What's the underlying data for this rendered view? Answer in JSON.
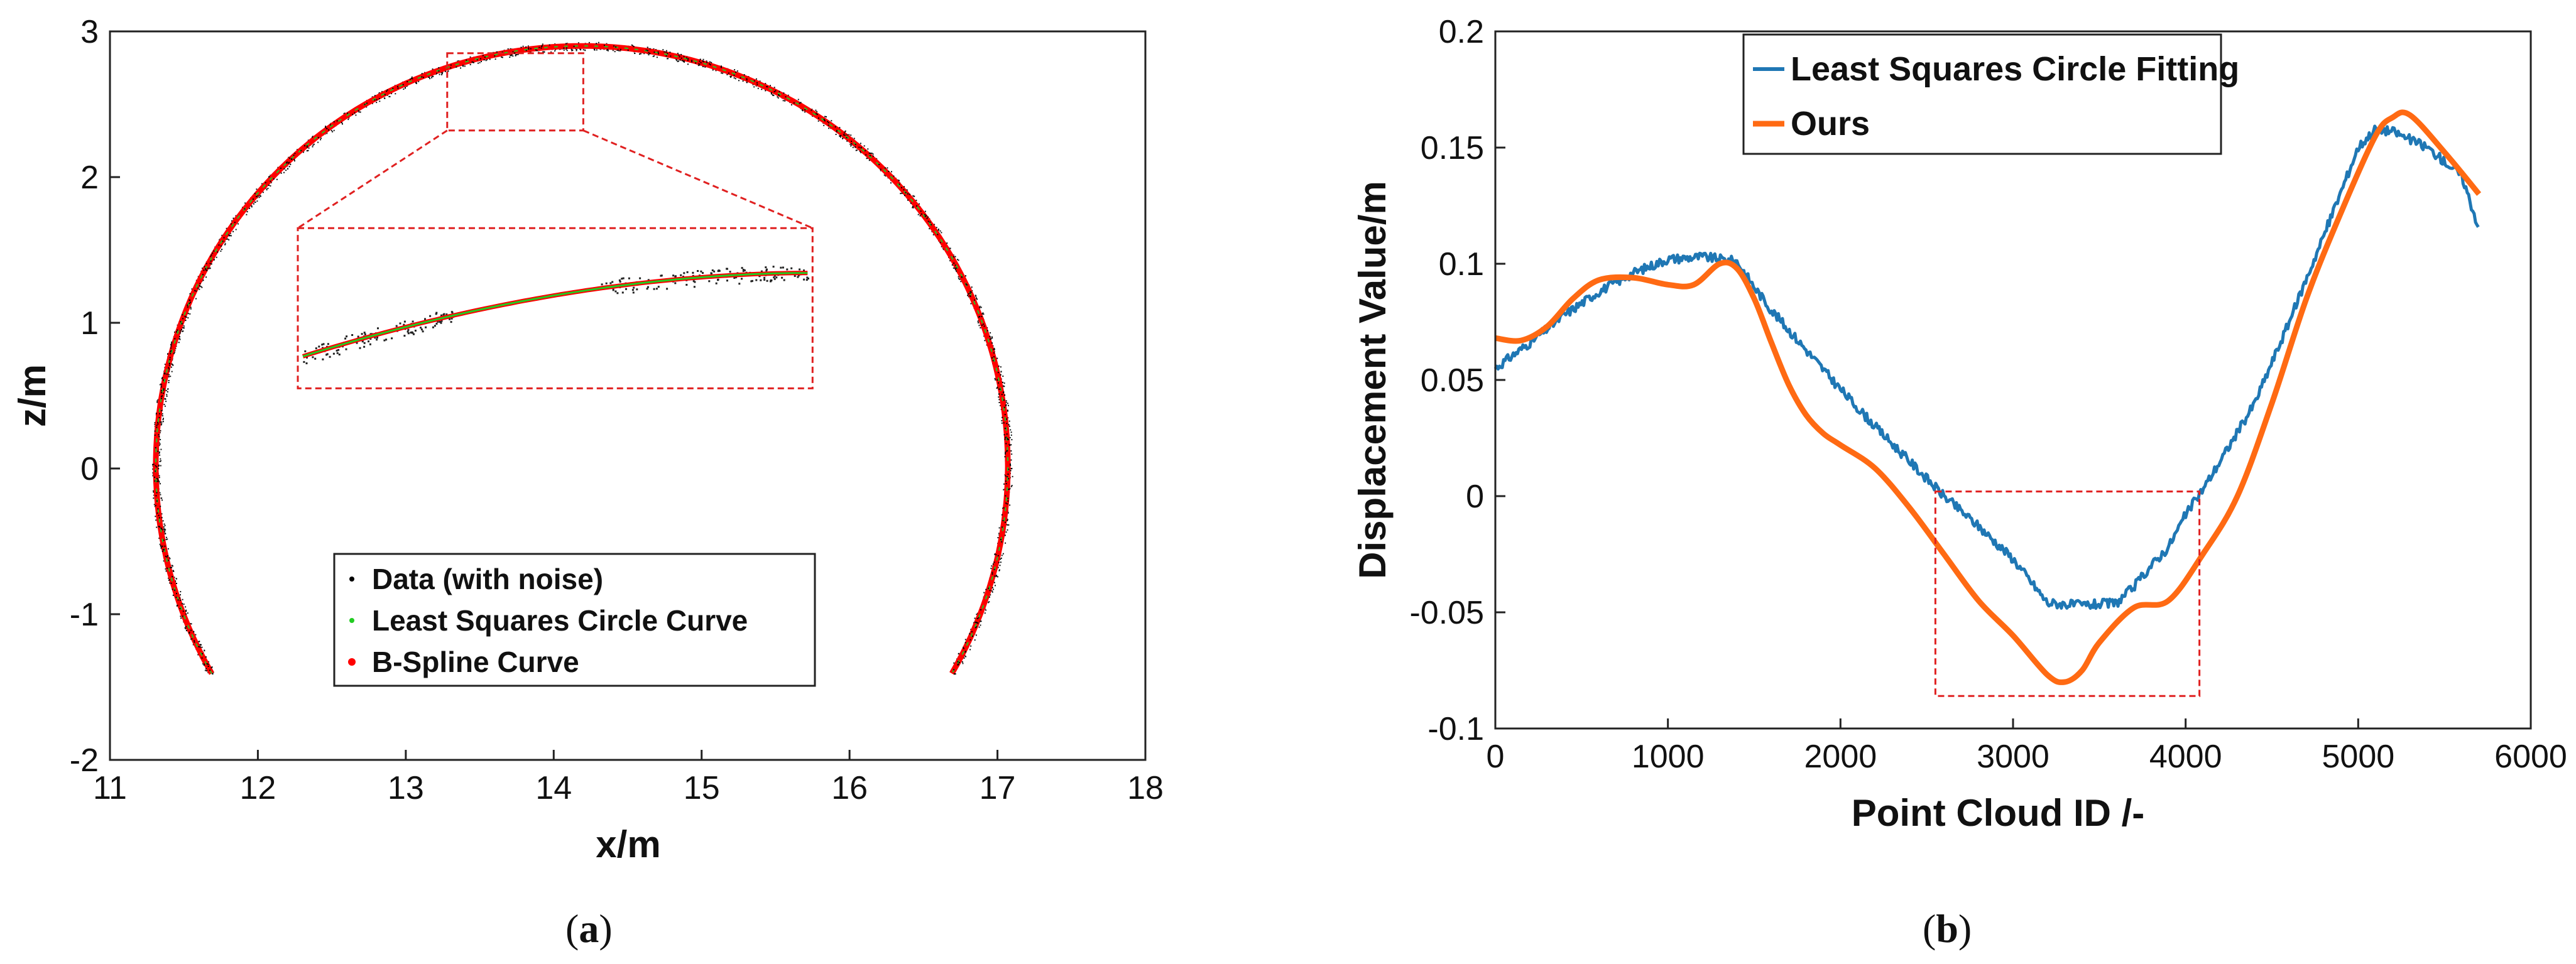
{
  "chart_data": [
    {
      "panel": "a",
      "type": "line",
      "xlabel": "x/m",
      "ylabel": "z/m",
      "xlim": [
        11,
        18
      ],
      "ylim": [
        -2,
        3
      ],
      "xticks": [
        "11",
        "12",
        "13",
        "14",
        "15",
        "16",
        "17",
        "18"
      ],
      "yticks": [
        "-2",
        "-1",
        "0",
        "1",
        "2",
        "3"
      ],
      "grid": false,
      "legend_position": "bottom-center",
      "fit_center": [
        14.19,
        0.02
      ],
      "fit_radius": 2.88,
      "arc_start": [
        11.7,
        -1.4
      ],
      "arc_end": [
        16.68,
        -1.4
      ],
      "series": [
        {
          "name": "Data (with noise)",
          "color": "#000000",
          "style": "scatter"
        },
        {
          "name": "Least Squares Circle Curve",
          "color": "#22cc22",
          "style": "line"
        },
        {
          "name": "B-Spline Curve",
          "color": "#ff0000",
          "style": "line"
        }
      ],
      "inset": {
        "zoom_x": [
          13.28,
          14.2
        ],
        "zoom_y": [
          2.32,
          2.85
        ],
        "source_region": "top of arch"
      }
    },
    {
      "panel": "b",
      "type": "line",
      "xlabel": "Point Cloud ID /-",
      "ylabel": "Displacement Value/m",
      "xlim": [
        0,
        6000
      ],
      "ylim": [
        -0.1,
        0.2
      ],
      "xticks": [
        "0",
        "1000",
        "2000",
        "3000",
        "4000",
        "5000",
        "6000"
      ],
      "yticks": [
        "-0.1",
        "-0.05",
        "0",
        "0.05",
        "0.1",
        "0.15",
        "0.2"
      ],
      "grid": false,
      "legend_position": "top-center",
      "highlight_box": {
        "x": [
          2550,
          4080
        ],
        "y": [
          -0.086,
          0.002
        ]
      },
      "series": [
        {
          "name": "Least Squares Circle Fitting",
          "color": "#1f77b4",
          "x": [
            0,
            200,
            400,
            600,
            800,
            1000,
            1200,
            1400,
            1500,
            1600,
            1800,
            2000,
            2200,
            2400,
            2600,
            2800,
            3000,
            3200,
            3400,
            3600,
            3700,
            3800,
            3900,
            4000,
            4100,
            4200,
            4400,
            4600,
            4800,
            5000,
            5100,
            5200,
            5400,
            5600,
            5700
          ],
          "y": [
            0.055,
            0.066,
            0.078,
            0.088,
            0.096,
            0.102,
            0.103,
            0.101,
            0.09,
            0.08,
            0.063,
            0.046,
            0.03,
            0.015,
            0.0,
            -0.013,
            -0.027,
            -0.046,
            -0.047,
            -0.046,
            -0.039,
            -0.03,
            -0.022,
            -0.008,
            0.003,
            0.015,
            0.04,
            0.075,
            0.112,
            0.15,
            0.158,
            0.157,
            0.15,
            0.138,
            0.115
          ]
        },
        {
          "name": "Ours",
          "color": "#ff6a13",
          "x": [
            0,
            150,
            300,
            450,
            600,
            800,
            1000,
            1150,
            1300,
            1400,
            1500,
            1600,
            1700,
            1800,
            1900,
            2000,
            2200,
            2400,
            2600,
            2800,
            3000,
            3200,
            3300,
            3400,
            3500,
            3700,
            3900,
            4100,
            4300,
            4500,
            4700,
            4900,
            5100,
            5200,
            5300,
            5500,
            5700
          ],
          "y": [
            0.068,
            0.067,
            0.073,
            0.085,
            0.093,
            0.094,
            0.091,
            0.091,
            0.1,
            0.098,
            0.085,
            0.066,
            0.048,
            0.035,
            0.027,
            0.022,
            0.012,
            -0.005,
            -0.025,
            -0.045,
            -0.06,
            -0.077,
            -0.08,
            -0.075,
            -0.063,
            -0.048,
            -0.045,
            -0.025,
            0.0,
            0.04,
            0.085,
            0.122,
            0.155,
            0.163,
            0.164,
            0.148,
            0.13
          ]
        }
      ]
    }
  ],
  "captions": [
    {
      "open": "(",
      "letter": "a",
      "close": ")"
    },
    {
      "open": "(",
      "letter": "b",
      "close": ")"
    }
  ]
}
